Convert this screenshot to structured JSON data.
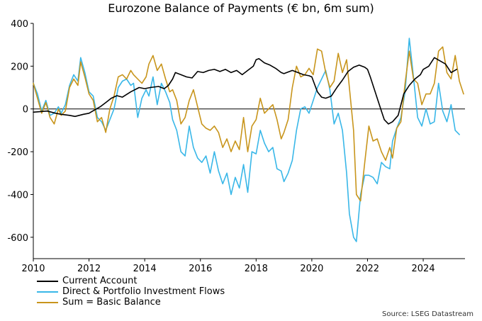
{
  "chart_data": {
    "type": "line",
    "title": "Eurozone Balance of Payments (€ bn, 6m sum)",
    "xlabel": "",
    "ylabel": "",
    "xlim": [
      2010,
      2025.5
    ],
    "ylim": [
      -700,
      400
    ],
    "x_ticks": [
      "2010",
      "2012",
      "2014",
      "2016",
      "2018",
      "2020",
      "2022",
      "2024"
    ],
    "y_ticks": [
      "400",
      "200",
      "0",
      "-200",
      "-400",
      "-600"
    ],
    "y_tick_values": [
      400,
      200,
      0,
      -200,
      -400,
      -600
    ],
    "x_tick_values": [
      2010,
      2012,
      2014,
      2016,
      2018,
      2020,
      2022,
      2024
    ],
    "zero_line": true,
    "grid": false,
    "legend_position": "bottom-left",
    "source": "Source: LSEG Datastream",
    "series": [
      {
        "name": "Current Account",
        "color": "#000000",
        "points": [
          [
            2010.0,
            -15
          ],
          [
            2010.5,
            -10
          ],
          [
            2010.8,
            -20
          ],
          [
            2011.0,
            -25
          ],
          [
            2011.3,
            -30
          ],
          [
            2011.5,
            -35
          ],
          [
            2011.8,
            -25
          ],
          [
            2012.0,
            -20
          ],
          [
            2012.2,
            -5
          ],
          [
            2012.4,
            10
          ],
          [
            2012.6,
            30
          ],
          [
            2012.8,
            50
          ],
          [
            2013.0,
            62
          ],
          [
            2013.2,
            55
          ],
          [
            2013.5,
            80
          ],
          [
            2013.8,
            100
          ],
          [
            2014.0,
            95
          ],
          [
            2014.2,
            100
          ],
          [
            2014.5,
            105
          ],
          [
            2014.7,
            95
          ],
          [
            2014.85,
            110
          ],
          [
            2015.0,
            140
          ],
          [
            2015.1,
            170
          ],
          [
            2015.3,
            160
          ],
          [
            2015.5,
            150
          ],
          [
            2015.7,
            145
          ],
          [
            2015.9,
            175
          ],
          [
            2016.1,
            170
          ],
          [
            2016.3,
            180
          ],
          [
            2016.5,
            185
          ],
          [
            2016.7,
            175
          ],
          [
            2016.9,
            185
          ],
          [
            2017.1,
            170
          ],
          [
            2017.3,
            180
          ],
          [
            2017.5,
            160
          ],
          [
            2017.7,
            180
          ],
          [
            2017.9,
            200
          ],
          [
            2018.0,
            230
          ],
          [
            2018.1,
            235
          ],
          [
            2018.3,
            215
          ],
          [
            2018.5,
            205
          ],
          [
            2018.7,
            190
          ],
          [
            2018.9,
            170
          ],
          [
            2019.0,
            165
          ],
          [
            2019.3,
            180
          ],
          [
            2019.5,
            170
          ],
          [
            2019.7,
            160
          ],
          [
            2019.9,
            155
          ],
          [
            2020.0,
            150
          ],
          [
            2020.1,
            115
          ],
          [
            2020.2,
            80
          ],
          [
            2020.35,
            55
          ],
          [
            2020.5,
            50
          ],
          [
            2020.7,
            60
          ],
          [
            2020.9,
            100
          ],
          [
            2021.1,
            135
          ],
          [
            2021.3,
            175
          ],
          [
            2021.5,
            195
          ],
          [
            2021.7,
            205
          ],
          [
            2021.9,
            195
          ],
          [
            2022.0,
            185
          ],
          [
            2022.1,
            150
          ],
          [
            2022.2,
            110
          ],
          [
            2022.35,
            50
          ],
          [
            2022.5,
            -10
          ],
          [
            2022.6,
            -50
          ],
          [
            2022.75,
            -70
          ],
          [
            2022.9,
            -60
          ],
          [
            2023.1,
            -30
          ],
          [
            2023.3,
            70
          ],
          [
            2023.5,
            110
          ],
          [
            2023.7,
            140
          ],
          [
            2023.9,
            160
          ],
          [
            2024.0,
            185
          ],
          [
            2024.2,
            200
          ],
          [
            2024.4,
            240
          ],
          [
            2024.6,
            225
          ],
          [
            2024.8,
            210
          ],
          [
            2025.0,
            170
          ],
          [
            2025.2,
            185
          ]
        ]
      },
      {
        "name": "Direct & Portfolio Investment Flows",
        "color": "#39b7e8",
        "points": [
          [
            2010.0,
            120
          ],
          [
            2010.15,
            70
          ],
          [
            2010.3,
            -10
          ],
          [
            2010.45,
            40
          ],
          [
            2010.6,
            -30
          ],
          [
            2010.75,
            -20
          ],
          [
            2010.9,
            10
          ],
          [
            2011.0,
            -20
          ],
          [
            2011.15,
            20
          ],
          [
            2011.3,
            110
          ],
          [
            2011.45,
            160
          ],
          [
            2011.6,
            130
          ],
          [
            2011.7,
            240
          ],
          [
            2011.85,
            170
          ],
          [
            2012.0,
            80
          ],
          [
            2012.15,
            60
          ],
          [
            2012.3,
            -40
          ],
          [
            2012.45,
            -60
          ],
          [
            2012.6,
            -100
          ],
          [
            2012.75,
            -50
          ],
          [
            2012.9,
            0
          ],
          [
            2013.05,
            100
          ],
          [
            2013.2,
            130
          ],
          [
            2013.35,
            140
          ],
          [
            2013.5,
            110
          ],
          [
            2013.6,
            120
          ],
          [
            2013.75,
            -40
          ],
          [
            2013.9,
            50
          ],
          [
            2014.05,
            90
          ],
          [
            2014.15,
            60
          ],
          [
            2014.3,
            150
          ],
          [
            2014.45,
            20
          ],
          [
            2014.6,
            120
          ],
          [
            2014.75,
            80
          ],
          [
            2014.9,
            30
          ],
          [
            2015.0,
            -50
          ],
          [
            2015.15,
            -100
          ],
          [
            2015.3,
            -200
          ],
          [
            2015.45,
            -220
          ],
          [
            2015.6,
            -80
          ],
          [
            2015.75,
            -180
          ],
          [
            2015.9,
            -230
          ],
          [
            2016.05,
            -250
          ],
          [
            2016.2,
            -220
          ],
          [
            2016.35,
            -300
          ],
          [
            2016.5,
            -200
          ],
          [
            2016.65,
            -290
          ],
          [
            2016.8,
            -350
          ],
          [
            2016.95,
            -300
          ],
          [
            2017.1,
            -400
          ],
          [
            2017.25,
            -320
          ],
          [
            2017.4,
            -370
          ],
          [
            2017.55,
            -260
          ],
          [
            2017.7,
            -390
          ],
          [
            2017.85,
            -200
          ],
          [
            2018.0,
            -210
          ],
          [
            2018.15,
            -100
          ],
          [
            2018.3,
            -160
          ],
          [
            2018.45,
            -200
          ],
          [
            2018.6,
            -180
          ],
          [
            2018.75,
            -280
          ],
          [
            2018.9,
            -290
          ],
          [
            2019.0,
            -340
          ],
          [
            2019.15,
            -300
          ],
          [
            2019.3,
            -240
          ],
          [
            2019.45,
            -100
          ],
          [
            2019.6,
            0
          ],
          [
            2019.75,
            10
          ],
          [
            2019.9,
            -20
          ],
          [
            2020.05,
            40
          ],
          [
            2020.2,
            100
          ],
          [
            2020.35,
            140
          ],
          [
            2020.5,
            180
          ],
          [
            2020.65,
            90
          ],
          [
            2020.8,
            -70
          ],
          [
            2020.95,
            -20
          ],
          [
            2021.1,
            -100
          ],
          [
            2021.25,
            -300
          ],
          [
            2021.35,
            -490
          ],
          [
            2021.5,
            -600
          ],
          [
            2021.6,
            -620
          ],
          [
            2021.75,
            -400
          ],
          [
            2021.9,
            -310
          ],
          [
            2022.05,
            -310
          ],
          [
            2022.2,
            -320
          ],
          [
            2022.35,
            -350
          ],
          [
            2022.5,
            -250
          ],
          [
            2022.65,
            -270
          ],
          [
            2022.8,
            -280
          ],
          [
            2022.9,
            -150
          ],
          [
            2023.05,
            -90
          ],
          [
            2023.2,
            -40
          ],
          [
            2023.35,
            80
          ],
          [
            2023.5,
            330
          ],
          [
            2023.65,
            150
          ],
          [
            2023.8,
            -40
          ],
          [
            2023.95,
            -80
          ],
          [
            2024.1,
            0
          ],
          [
            2024.25,
            -70
          ],
          [
            2024.4,
            -60
          ],
          [
            2024.55,
            120
          ],
          [
            2024.7,
            -10
          ],
          [
            2024.85,
            -60
          ],
          [
            2025.0,
            20
          ],
          [
            2025.15,
            -100
          ],
          [
            2025.3,
            -120
          ]
        ]
      },
      {
        "name": "Sum = Basic Balance",
        "color": "#c8951c",
        "points": [
          [
            2010.0,
            120
          ],
          [
            2010.15,
            50
          ],
          [
            2010.3,
            -20
          ],
          [
            2010.45,
            30
          ],
          [
            2010.6,
            -40
          ],
          [
            2010.75,
            -70
          ],
          [
            2010.9,
            0
          ],
          [
            2011.0,
            -30
          ],
          [
            2011.15,
            -10
          ],
          [
            2011.3,
            100
          ],
          [
            2011.45,
            140
          ],
          [
            2011.6,
            110
          ],
          [
            2011.7,
            220
          ],
          [
            2011.85,
            150
          ],
          [
            2012.0,
            70
          ],
          [
            2012.15,
            40
          ],
          [
            2012.3,
            -60
          ],
          [
            2012.45,
            -40
          ],
          [
            2012.6,
            -110
          ],
          [
            2012.75,
            0
          ],
          [
            2012.9,
            60
          ],
          [
            2013.05,
            150
          ],
          [
            2013.2,
            160
          ],
          [
            2013.35,
            140
          ],
          [
            2013.5,
            180
          ],
          [
            2013.6,
            160
          ],
          [
            2013.75,
            140
          ],
          [
            2013.9,
            120
          ],
          [
            2014.05,
            150
          ],
          [
            2014.15,
            210
          ],
          [
            2014.3,
            250
          ],
          [
            2014.45,
            180
          ],
          [
            2014.6,
            210
          ],
          [
            2014.75,
            140
          ],
          [
            2014.9,
            80
          ],
          [
            2015.0,
            90
          ],
          [
            2015.15,
            40
          ],
          [
            2015.3,
            -70
          ],
          [
            2015.45,
            -40
          ],
          [
            2015.6,
            40
          ],
          [
            2015.75,
            90
          ],
          [
            2015.9,
            10
          ],
          [
            2016.05,
            -70
          ],
          [
            2016.2,
            -90
          ],
          [
            2016.35,
            -100
          ],
          [
            2016.5,
            -80
          ],
          [
            2016.65,
            -110
          ],
          [
            2016.8,
            -180
          ],
          [
            2016.95,
            -140
          ],
          [
            2017.1,
            -200
          ],
          [
            2017.25,
            -150
          ],
          [
            2017.4,
            -190
          ],
          [
            2017.55,
            -40
          ],
          [
            2017.7,
            -200
          ],
          [
            2017.85,
            -80
          ],
          [
            2018.0,
            -50
          ],
          [
            2018.15,
            50
          ],
          [
            2018.3,
            -20
          ],
          [
            2018.45,
            0
          ],
          [
            2018.6,
            20
          ],
          [
            2018.75,
            -50
          ],
          [
            2018.9,
            -140
          ],
          [
            2019.0,
            -110
          ],
          [
            2019.15,
            -50
          ],
          [
            2019.3,
            100
          ],
          [
            2019.45,
            200
          ],
          [
            2019.6,
            150
          ],
          [
            2019.75,
            160
          ],
          [
            2019.9,
            190
          ],
          [
            2020.05,
            160
          ],
          [
            2020.2,
            280
          ],
          [
            2020.35,
            270
          ],
          [
            2020.5,
            170
          ],
          [
            2020.65,
            100
          ],
          [
            2020.8,
            130
          ],
          [
            2020.95,
            260
          ],
          [
            2021.1,
            170
          ],
          [
            2021.25,
            230
          ],
          [
            2021.35,
            100
          ],
          [
            2021.5,
            -100
          ],
          [
            2021.6,
            -400
          ],
          [
            2021.75,
            -430
          ],
          [
            2021.9,
            -250
          ],
          [
            2022.05,
            -80
          ],
          [
            2022.2,
            -150
          ],
          [
            2022.35,
            -140
          ],
          [
            2022.5,
            -200
          ],
          [
            2022.65,
            -240
          ],
          [
            2022.8,
            -180
          ],
          [
            2022.9,
            -230
          ],
          [
            2023.05,
            -90
          ],
          [
            2023.2,
            -60
          ],
          [
            2023.35,
            120
          ],
          [
            2023.5,
            270
          ],
          [
            2023.65,
            140
          ],
          [
            2023.8,
            120
          ],
          [
            2023.95,
            20
          ],
          [
            2024.1,
            70
          ],
          [
            2024.25,
            70
          ],
          [
            2024.4,
            120
          ],
          [
            2024.55,
            270
          ],
          [
            2024.7,
            290
          ],
          [
            2024.85,
            170
          ],
          [
            2025.0,
            140
          ],
          [
            2025.15,
            250
          ],
          [
            2025.3,
            130
          ],
          [
            2025.45,
            70
          ]
        ]
      }
    ]
  }
}
